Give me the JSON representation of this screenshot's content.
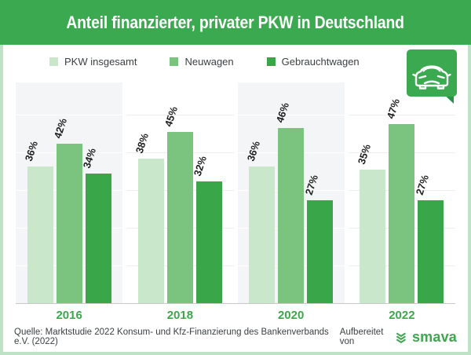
{
  "title": "Anteil finanzierter, privater PKW in Deutschland",
  "legend": [
    {
      "label": "PKW insgesamt",
      "color": "#c9e7ca"
    },
    {
      "label": "Neuwagen",
      "color": "#7ac47f"
    },
    {
      "label": "Gebrauchtwagen",
      "color": "#3aa64a"
    }
  ],
  "chart_data": {
    "type": "bar",
    "title": "Anteil finanzierter, privater PKW in Deutschland",
    "categories": [
      "2016",
      "2018",
      "2020",
      "2022"
    ],
    "series": [
      {
        "name": "PKW insgesamt",
        "values": [
          36,
          38,
          36,
          35
        ]
      },
      {
        "name": "Neuwagen",
        "values": [
          42,
          45,
          46,
          47
        ]
      },
      {
        "name": "Gebrauchtwagen",
        "values": [
          34,
          32,
          27,
          27
        ]
      }
    ],
    "value_suffix": "%",
    "ylim": [
      0,
      58
    ],
    "grid": "horizontal-10pct",
    "legend_position": "top",
    "value_labels": "rotated-above-bars"
  },
  "icons": {
    "car": "car-icon",
    "brand": "smava-logo-icon"
  },
  "footer": {
    "source": "Quelle: Marktstudie 2022 Konsum- und Kfz-Finanzierung des Bankenverbands e.V. (2022)",
    "attribution_label": "Aufbereitet von",
    "brand": "smava"
  },
  "colors": {
    "header_bg": "#3ba94f",
    "series": [
      "#c9e7ca",
      "#7ac47f",
      "#3aa64a"
    ],
    "year_label": "#3fa64d",
    "brand_green": "#3fa64d",
    "panel_shaded": "#f4f5f6",
    "frame_border": "#bee2c6",
    "bubble_tail": "#2f8f44"
  }
}
